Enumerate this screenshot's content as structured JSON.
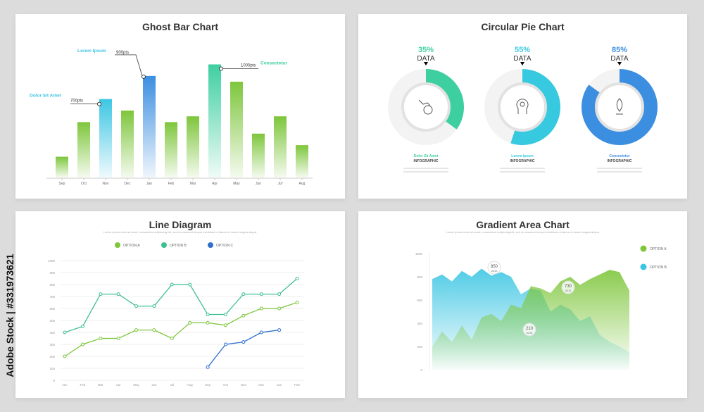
{
  "watermark_side": "Adobe Stock | #331973621",
  "chart_data": [
    {
      "type": "bar",
      "title": "Ghost Bar Chart",
      "categories": [
        "Sep",
        "Oct",
        "Nov",
        "Dec",
        "Jan",
        "Feb",
        "Mar",
        "Apr",
        "May",
        "Jun",
        "Jul'",
        "Aug"
      ],
      "values": [
        18,
        48,
        68,
        58,
        88,
        48,
        53,
        98,
        83,
        38,
        53,
        28
      ],
      "ylim": [
        0,
        105
      ],
      "colors": {
        "green": "#7ec63c",
        "teal": "#3dc6e3",
        "blue": "#3b8ee0",
        "mint": "#3ecfa0"
      },
      "annotations": [
        {
          "label": "Dolor Sit Amet",
          "value": "700pts"
        },
        {
          "label": "Lorem Ipsum",
          "value": "900pts"
        },
        {
          "label": "Consectetur",
          "value": "1000pts"
        }
      ]
    },
    {
      "type": "pie",
      "title": "Circular Pie Chart",
      "slices": [
        {
          "percent": 35,
          "label": "DATA",
          "name": "Dolor Sit Amet",
          "sub": "INFOGRAPHIC",
          "color": "#3ecfa0",
          "icon": "money-hand-icon"
        },
        {
          "percent": 55,
          "label": "DATA",
          "name": "Lorem Ipsum",
          "sub": "INFOGRAPHIC",
          "color": "#37c9e0",
          "icon": "team-head-icon"
        },
        {
          "percent": 85,
          "label": "DATA",
          "name": "Consectetur",
          "sub": "INFOGRAPHIC",
          "color": "#3b8ee0",
          "icon": "rocket-icon"
        }
      ]
    },
    {
      "type": "line",
      "title": "Line Diagram",
      "subtitle": "Lorem ipsum dolor sit amet, consectetur adipiscing elit, sed do eiusmod tempor incididunt ut labore et dolore magna aliqua.",
      "x": [
        "Jan",
        "Feb",
        "Mar",
        "Apr",
        "May",
        "Jun",
        "Jul",
        "Aug",
        "Sep",
        "Oct",
        "Nov",
        "Dec",
        "Jan",
        "Feb"
      ],
      "ylim": [
        0,
        1000
      ],
      "yticks": [
        "0",
        "100",
        "200",
        "300",
        "400",
        "500",
        "600",
        "700",
        "800",
        "900",
        "1000"
      ],
      "series": [
        {
          "name": "OPTION A",
          "color": "#7ec63c",
          "values": [
            200,
            300,
            350,
            350,
            420,
            420,
            350,
            480,
            480,
            460,
            540,
            600,
            600,
            650
          ]
        },
        {
          "name": "OPTION B",
          "color": "#3ebf8f",
          "values": [
            400,
            450,
            720,
            720,
            620,
            620,
            800,
            800,
            550,
            550,
            720,
            720,
            720,
            850
          ]
        },
        {
          "name": "OPTION C",
          "color": "#2e6fd0",
          "values": [
            null,
            null,
            null,
            null,
            null,
            null,
            null,
            null,
            110,
            300,
            320,
            400,
            420,
            null
          ]
        }
      ]
    },
    {
      "type": "area",
      "title": "Gradient Area Chart",
      "subtitle": "Lorem ipsum dolor sit amet, consectetur adipiscing elit, sed do eiusmod tempor incididunt ut labore et dolore magna aliqua.",
      "ylim": [
        0,
        1000
      ],
      "yticks": [
        "0",
        "200",
        "400",
        "600",
        "800",
        "1000"
      ],
      "series": [
        {
          "name": "OPTION A",
          "color": "#7ec63c",
          "values": [
            200,
            330,
            240,
            380,
            260,
            450,
            480,
            420,
            560,
            530,
            720,
            700,
            660,
            760,
            800,
            730,
            780,
            820,
            860,
            840,
            680
          ]
        },
        {
          "name": "OPTION B",
          "color": "#3dc6e3",
          "values": [
            780,
            820,
            760,
            850,
            800,
            870,
            810,
            840,
            800,
            650,
            700,
            680,
            500,
            560,
            520,
            420,
            460,
            300,
            240,
            200,
            150
          ]
        }
      ],
      "annotations": [
        {
          "value": "850",
          "label": "DATA"
        },
        {
          "value": "730",
          "label": "DATA"
        },
        {
          "value": "210",
          "label": "DATA"
        }
      ]
    }
  ]
}
